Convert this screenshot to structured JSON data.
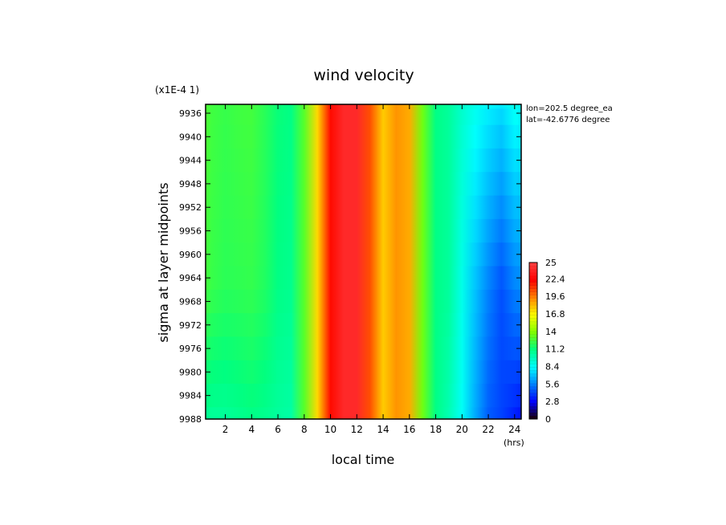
{
  "chart_data": {
    "type": "heatmap",
    "title": "wind velocity",
    "xlabel": "local time",
    "ylabel": "sigma at layer midpoints",
    "y_scale_label": "(x1E-4 1)",
    "x_unit_label": "(hrs)",
    "annotations": [
      "lon=202.5 degree_ea",
      "lat=-42.6776 degree"
    ],
    "x_ticks": [
      "2",
      "4",
      "6",
      "8",
      "10",
      "12",
      "14",
      "16",
      "18",
      "20",
      "22",
      "24"
    ],
    "y_ticks": [
      "9936",
      "9940",
      "9944",
      "9948",
      "9952",
      "9956",
      "9960",
      "9964",
      "9968",
      "9972",
      "9976",
      "9980",
      "9984",
      "9988"
    ],
    "xlim": [
      0.5,
      24.5
    ],
    "ylim": [
      9934.5,
      9988
    ],
    "y_inverted": true,
    "colorbar": {
      "min": 0,
      "max": 25,
      "tick_labels": [
        "25",
        "22.4",
        "19.6",
        "16.8",
        "14",
        "11.2",
        "8.4",
        "5.6",
        "2.8",
        "0"
      ],
      "tick_values": [
        25,
        22.4,
        19.6,
        16.8,
        14,
        11.2,
        8.4,
        5.6,
        2.8,
        0
      ],
      "color_stops": [
        "#1a0000",
        "#0000ff",
        "#0080ff",
        "#00ffff",
        "#00ff80",
        "#80ff00",
        "#ffff00",
        "#ff8000",
        "#ff0000",
        "#ff4040"
      ]
    },
    "x": [
      0.5,
      1,
      2,
      3,
      4,
      5,
      6,
      7,
      8,
      9,
      10,
      11,
      12,
      13,
      14,
      15,
      16,
      17,
      18,
      19,
      20,
      21,
      22,
      23,
      24,
      24.5
    ],
    "y": [
      9934.5,
      9936,
      9940,
      9944,
      9948,
      9952,
      9956,
      9960,
      9964,
      9968,
      9972,
      9976,
      9980,
      9984,
      9988
    ],
    "values_top": [
      12.8,
      12.5,
      12.3,
      12.5,
      12.6,
      12.0,
      11.3,
      11.0,
      13.0,
      17.5,
      22.0,
      24.0,
      24.0,
      20.5,
      17.8,
      19.0,
      18.5,
      13.5,
      11.0,
      10.5,
      9.5,
      8.8,
      8.2,
      7.8,
      8.8,
      8.6
    ],
    "values_mid": [
      12.6,
      12.3,
      12.0,
      12.1,
      12.2,
      11.8,
      11.0,
      10.8,
      13.0,
      17.5,
      22.0,
      24.0,
      24.0,
      20.5,
      17.8,
      19.0,
      18.5,
      13.5,
      11.0,
      10.5,
      8.8,
      7.0,
      5.6,
      4.5,
      5.6,
      5.8
    ],
    "values_bottom": [
      10.8,
      10.6,
      10.6,
      10.8,
      11.0,
      10.8,
      10.5,
      10.3,
      13.0,
      17.5,
      22.0,
      24.0,
      24.0,
      20.5,
      17.8,
      19.0,
      18.5,
      13.5,
      11.0,
      10.0,
      8.5,
      6.5,
      4.8,
      4.2,
      3.5,
      3.2
    ]
  }
}
